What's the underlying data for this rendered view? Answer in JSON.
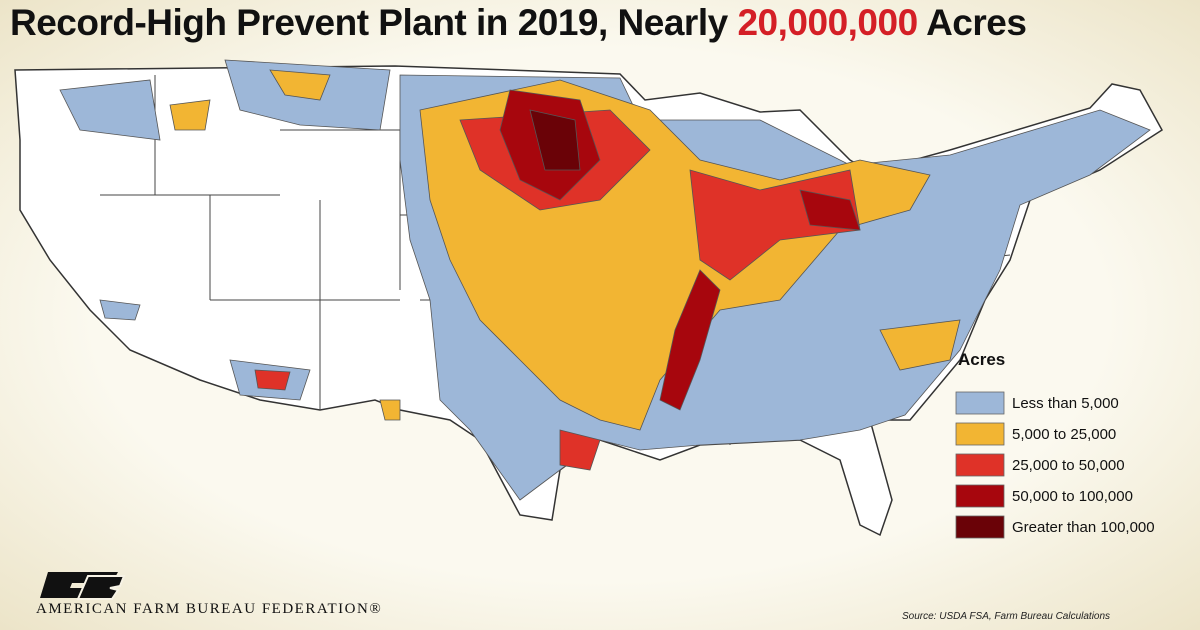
{
  "header": {
    "title": {
      "before": "Record-High Prevent Plant in 2019, Nearly ",
      "highlight": "20,000,000",
      "after": " Acres"
    }
  },
  "legend": {
    "title": "Acres",
    "items": [
      {
        "label": "Less than 5,000",
        "color": "#9db7d8"
      },
      {
        "label": "5,000 to 25,000",
        "color": "#f2b533"
      },
      {
        "label": "25,000 to 50,000",
        "color": "#df3228"
      },
      {
        "label": "50,000 to 100,000",
        "color": "#a7060d"
      },
      {
        "label": "Greater than 100,000",
        "color": "#6a0207"
      }
    ]
  },
  "footer": {
    "organization": "AMERICAN FARM BUREAU FEDERATION®",
    "source": "Source: USDA FSA, Farm Bureau Calculations"
  }
}
